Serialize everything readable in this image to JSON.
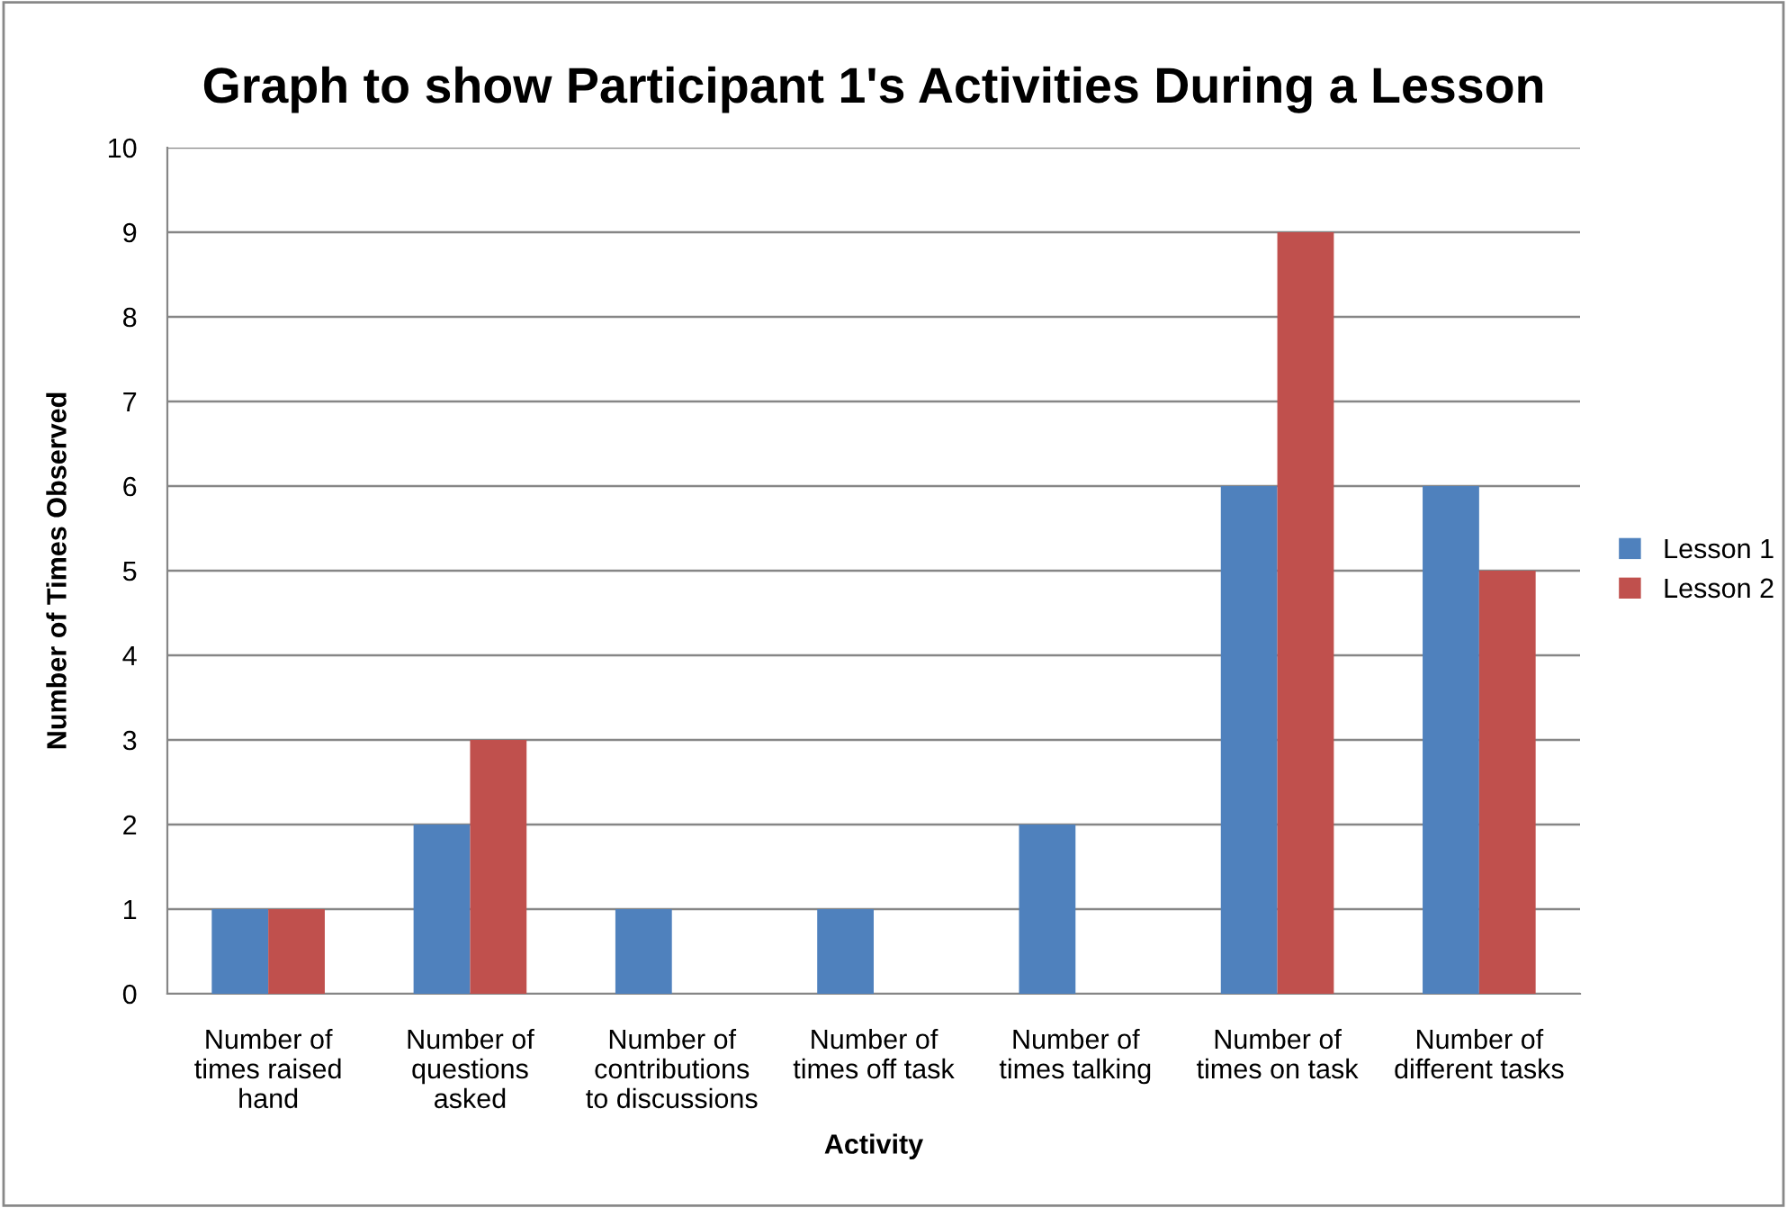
{
  "chart_data": {
    "type": "bar",
    "title": "Graph to show Participant 1's Activities During a Lesson",
    "xlabel": "Activity",
    "ylabel": "Number of Times Observed",
    "categories": [
      "Number of\ntimes raised\nhand",
      "Number of\nquestions\nasked",
      "Number of\ncontributions\nto discussions",
      "Number of\ntimes off task",
      "Number of\ntimes talking",
      "Number of\ntimes on task",
      "Number of\ndifferent tasks"
    ],
    "series": [
      {
        "name": "Lesson 1",
        "color": "#4f81bd",
        "values": [
          1,
          2,
          1,
          1,
          2,
          6,
          6
        ]
      },
      {
        "name": "Lesson 2",
        "color": "#c0504d",
        "values": [
          1,
          3,
          0,
          0,
          0,
          9,
          5
        ]
      }
    ],
    "ylim": [
      0,
      10
    ],
    "yticks": [
      0,
      1,
      2,
      3,
      4,
      5,
      6,
      7,
      8,
      9,
      10
    ],
    "grid": "y",
    "legend": "right"
  }
}
